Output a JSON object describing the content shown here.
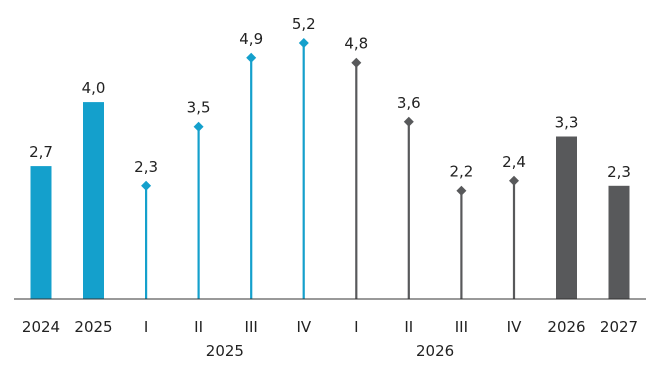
{
  "chart_data": {
    "type": "bar",
    "title": "",
    "xlabel": "",
    "ylabel": "",
    "ylim": [
      0,
      5.2
    ],
    "grid": false,
    "legend": "none",
    "categories": [
      "2024",
      "2025",
      "I",
      "II",
      "III",
      "IV",
      "I",
      "II",
      "III",
      "IV",
      "2026",
      "2027"
    ],
    "values": [
      2.7,
      4.0,
      2.3,
      3.5,
      4.9,
      5.2,
      4.8,
      3.6,
      2.2,
      2.4,
      3.3,
      2.3
    ],
    "value_labels": [
      "2,7",
      "4,0",
      "2,3",
      "3,5",
      "4,9",
      "5,2",
      "4,8",
      "3,6",
      "2,2",
      "2,4",
      "3,3",
      "2,3"
    ],
    "mark_types": [
      "bar",
      "bar",
      "lollipop",
      "lollipop",
      "lollipop",
      "lollipop",
      "lollipop",
      "lollipop",
      "lollipop",
      "lollipop",
      "bar",
      "bar"
    ],
    "colors": [
      "#14a0cc",
      "#14a0cc",
      "#14a0cc",
      "#14a0cc",
      "#14a0cc",
      "#14a0cc",
      "#58595b",
      "#58595b",
      "#58595b",
      "#58595b",
      "#58595b",
      "#58595b"
    ],
    "group_labels": [
      {
        "label": "2025",
        "categories": [
          2,
          3,
          4,
          5
        ]
      },
      {
        "label": "2026",
        "categories": [
          6,
          7,
          8,
          9
        ]
      }
    ]
  }
}
